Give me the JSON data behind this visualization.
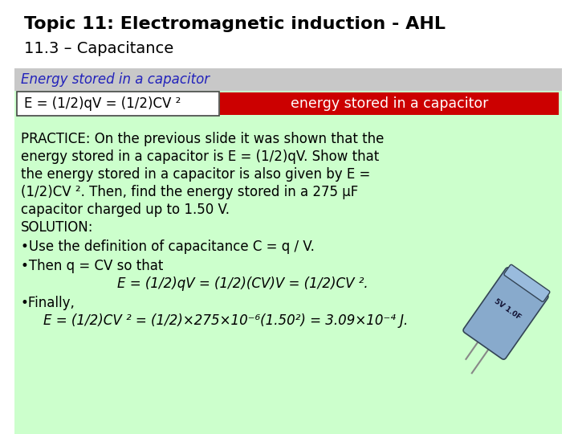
{
  "title_line1": "Topic 11: Electromagnetic induction - AHL",
  "title_line2": "11.3 – Capacitance",
  "section_title": "Energy stored in a capacitor",
  "formula_text": "E = (1/2)qV = (1/2)CV ²",
  "formula_label": "energy stored in a capacitor",
  "body_lines": [
    "PRACTICE: On the previous slide it was shown that the",
    "energy stored in a capacitor is E = (1/2)qV. Show that",
    "the energy stored in a capacitor is also given by E =",
    "(1/2)CV ². Then, find the energy stored in a 275 μF",
    "capacitor charged up to 1.50 V."
  ],
  "solution_line": "SOLUTION:",
  "bullet1": "•Use the definition of capacitance C = q / V.",
  "bullet2": "•Then q = CV so that",
  "equation_center": "E = (1/2)qV = (1/2)(CV)V = (1/2)CV ².",
  "bullet3": "•Finally,",
  "equation_final": "E = (1/2)CV ² = (1/2)×275×10⁻⁶(1.50²) = 3.09×10⁻⁴ J.",
  "bg_color": "#ffffff",
  "green_bg": "#ccffcc",
  "section_bg": "#c8c8c8",
  "formula_box_color": "#ffffff",
  "formula_label_bg": "#cc0000",
  "formula_label_color": "#ffffff",
  "section_title_color": "#2222bb",
  "title_color": "#000000",
  "body_color": "#000000",
  "title1_fontsize": 16,
  "title2_fontsize": 14,
  "section_fontsize": 12,
  "formula_fontsize": 12,
  "body_fontsize": 12
}
